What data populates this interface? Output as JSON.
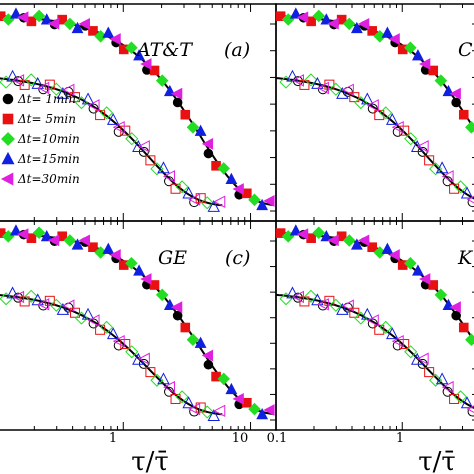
{
  "chart_data": [
    {
      "type": "scatter",
      "panel_label": "AT&T",
      "panel_letter": "(a)",
      "xscale": "log",
      "yscale": "log",
      "xlim": [
        0.1,
        20
      ],
      "ylim": [
        5e-05,
        2
      ],
      "x_tick_labels": [
        "1",
        "10"
      ],
      "x_tick_values": [
        1,
        10
      ],
      "curves": [
        {
          "shift": 1.0,
          "tail_x": 15
        },
        {
          "shift": 0.1,
          "tail_x": 6
        }
      ],
      "series": [
        {
          "name": "Δt=  1min",
          "color": "#000000",
          "marker": "circle"
        },
        {
          "name": "Δt=  5min",
          "color": "#e81010",
          "marker": "square"
        },
        {
          "name": "Δt=10min",
          "color": "#22dd22",
          "marker": "diamond"
        },
        {
          "name": "Δt=15min",
          "color": "#1020e0",
          "marker": "triangle-up"
        },
        {
          "name": "Δt=30min",
          "color": "#e020e0",
          "marker": "triangle-left"
        }
      ],
      "legend_position": "left"
    },
    {
      "type": "scatter",
      "panel_label": "C",
      "panel_letter": "",
      "xscale": "log",
      "yscale": "log",
      "curves": [
        {
          "shift": 1.0,
          "tail_x": 15
        },
        {
          "shift": 0.1,
          "tail_x": 6
        }
      ]
    },
    {
      "type": "scatter",
      "panel_label": "GE",
      "panel_letter": "(c)",
      "xscale": "log",
      "yscale": "log",
      "xlim": [
        0.1,
        20
      ],
      "x_tick_labels": [
        "1",
        "10"
      ],
      "x_tick_values": [
        1,
        10
      ],
      "xlabel": "τ/τ̄",
      "curves": [
        {
          "shift": 1.0,
          "tail_x": 15
        },
        {
          "shift": 0.1,
          "tail_x": 6
        }
      ]
    },
    {
      "type": "scatter",
      "panel_label": "K",
      "panel_letter": "",
      "xscale": "log",
      "yscale": "log",
      "x_tick_labels": [
        "0.1",
        "1"
      ],
      "x_tick_values": [
        0.1,
        1
      ],
      "xlabel": "τ/τ̄",
      "curves": [
        {
          "shift": 1.0,
          "tail_x": 15
        },
        {
          "shift": 0.1,
          "tail_x": 6
        }
      ]
    }
  ],
  "colors": {
    "axis": "#000000",
    "fit_line": "#000000"
  }
}
